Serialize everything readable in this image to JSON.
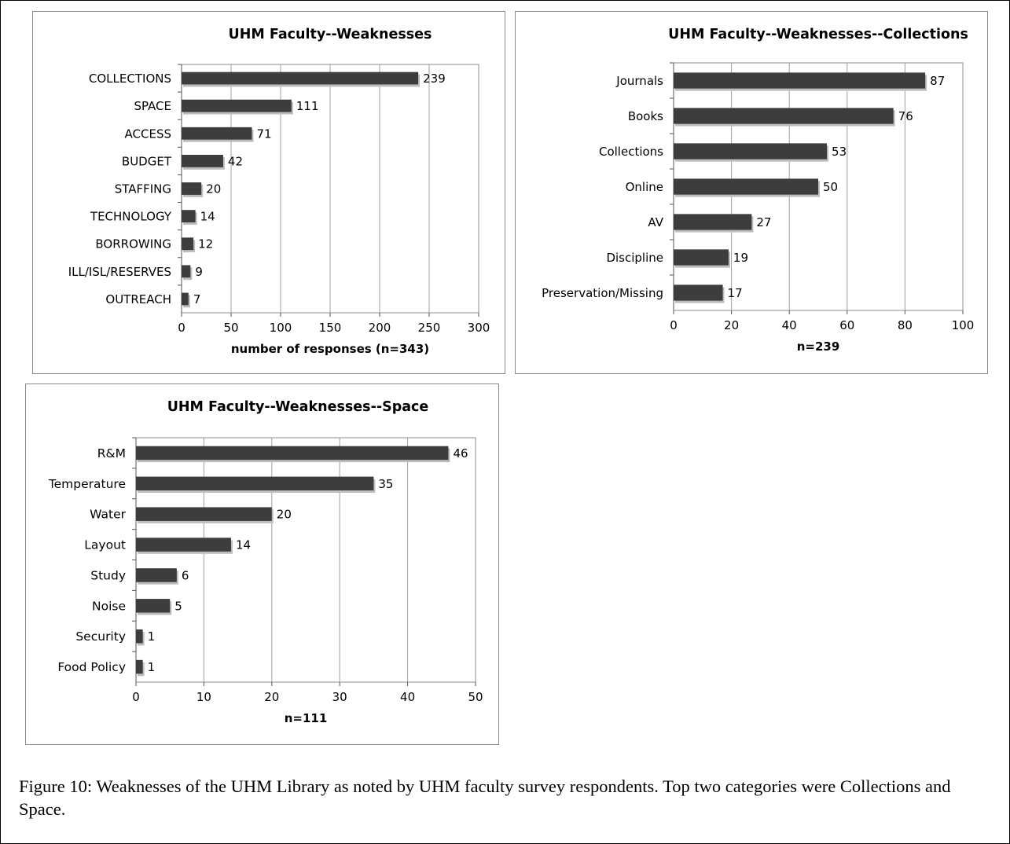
{
  "chart_data": [
    {
      "type": "bar",
      "orientation": "horizontal",
      "title": "UHM Faculty--Weaknesses",
      "xlabel": "number of responses (n=343)",
      "categories": [
        "COLLECTIONS",
        "SPACE",
        "ACCESS",
        "BUDGET",
        "STAFFING",
        "TECHNOLOGY",
        "BORROWING",
        "ILL/ISL/RESERVES",
        "OUTREACH"
      ],
      "values": [
        239,
        111,
        71,
        42,
        20,
        14,
        12,
        9,
        7
      ],
      "xlim": [
        0,
        300
      ],
      "xticks": [
        0,
        50,
        100,
        150,
        200,
        250,
        300
      ],
      "grid": true,
      "legend": "none",
      "bar_color": "#3d3d3d"
    },
    {
      "type": "bar",
      "orientation": "horizontal",
      "title": "UHM Faculty--Weaknesses--Collections",
      "xlabel": "n=239",
      "categories": [
        "Journals",
        "Books",
        "Collections",
        "Online",
        "AV",
        "Discipline",
        "Preservation/Missing"
      ],
      "values": [
        87,
        76,
        53,
        50,
        27,
        19,
        17
      ],
      "xlim": [
        0,
        100
      ],
      "xticks": [
        0,
        20,
        40,
        60,
        80,
        100
      ],
      "grid": true,
      "legend": "none",
      "bar_color": "#3d3d3d"
    },
    {
      "type": "bar",
      "orientation": "horizontal",
      "title": "UHM Faculty--Weaknesses--Space",
      "xlabel": "n=111",
      "categories": [
        "R&M",
        "Temperature",
        "Water",
        "Layout",
        "Study",
        "Noise",
        "Security",
        "Food Policy"
      ],
      "values": [
        46,
        35,
        20,
        14,
        6,
        5,
        1,
        1
      ],
      "xlim": [
        0,
        50
      ],
      "xticks": [
        0,
        10,
        20,
        30,
        40,
        50
      ],
      "grid": true,
      "legend": "none",
      "bar_color": "#3d3d3d"
    }
  ],
  "caption": "Figure 10: Weaknesses of the UHM Library as noted by UHM faculty survey respondents. Top two categories were Collections and Space."
}
